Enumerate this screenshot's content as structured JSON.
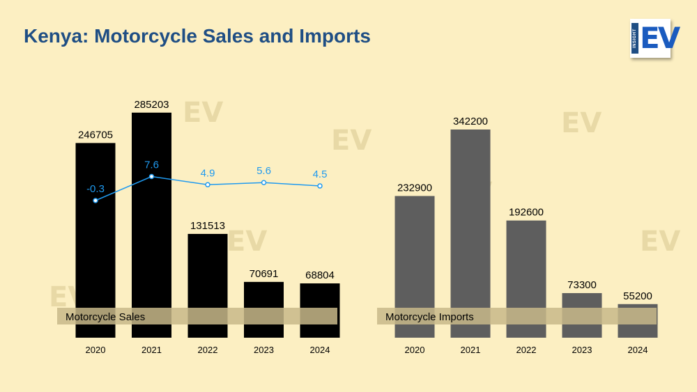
{
  "title": "Kenya: Motorcycle Sales and Imports",
  "logo": {
    "side_text": "INSIGHT",
    "main_text": "EV"
  },
  "colors": {
    "background": "#fcefc2",
    "title": "#1f4e84",
    "sales_bar": "#000000",
    "imports_bar": "#5e5e5e",
    "growth_line": "#1f9af0",
    "band": "#c8b88a"
  },
  "chart_data": [
    {
      "type": "bar",
      "categories": [
        "2020",
        "2021",
        "2022",
        "2023",
        "2024"
      ],
      "series": [
        {
          "name": "Motorcycle Sales",
          "values": [
            246705,
            285203,
            131513,
            70691,
            68804
          ]
        }
      ],
      "overlay_line": {
        "values": [
          -0.3,
          7.6,
          4.9,
          5.6,
          4.5
        ]
      },
      "ylim": [
        0,
        300000
      ],
      "grid": false,
      "legend": "bottom-left"
    },
    {
      "type": "bar",
      "categories": [
        "2020",
        "2021",
        "2022",
        "2023",
        "2024"
      ],
      "series": [
        {
          "name": "Motorcycle Imports",
          "values": [
            232900,
            342200,
            192600,
            73300,
            55200
          ]
        }
      ],
      "ylim": [
        0,
        342200
      ],
      "grid": false,
      "legend": "bottom-left"
    }
  ]
}
